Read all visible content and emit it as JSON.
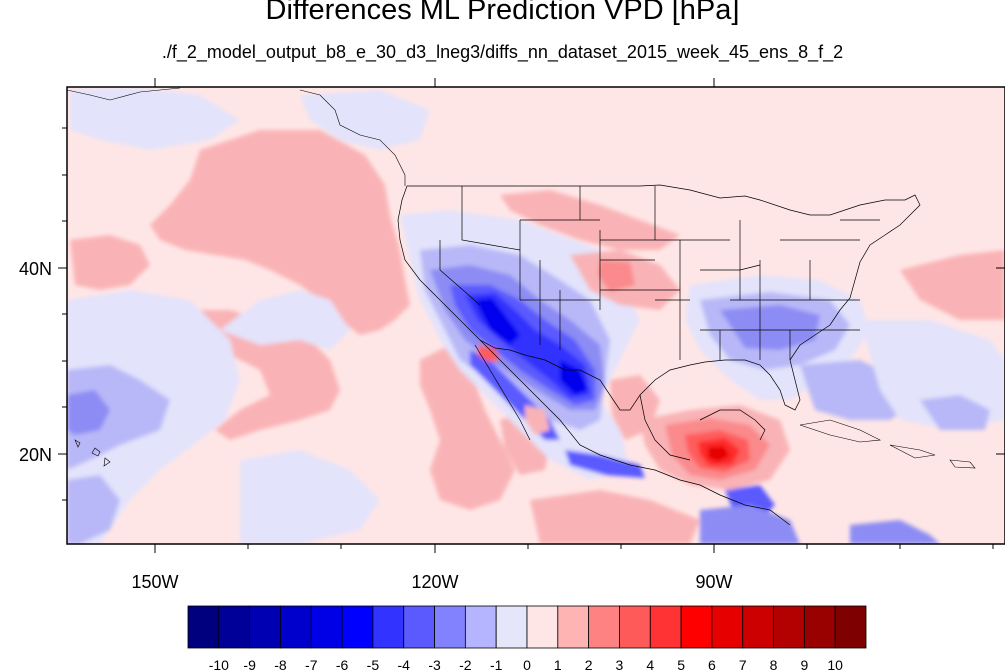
{
  "title": "Differences ML Prediction VPD [hPa]",
  "subtitle": "./f_2_model_output_b8_e_30_d3_lneg3/diffs_nn_dataset_2015_week_45_ens_8_f_2",
  "map": {
    "projection": "cylindrical equidistant",
    "lon_range": [
      -159.3,
      -59.0
    ],
    "lat_range": [
      10.0,
      58.5
    ],
    "lon_tick_labels": [
      "150W",
      "120W",
      "90W"
    ],
    "lat_tick_labels": [
      "40N",
      "20N"
    ],
    "background_level": "0 to 1 (pale pink) over most of domain",
    "notable_features": [
      "strong negative (-5 to -7) over southwestern US / Baja California / northwestern Mexico",
      "positive maximum (6 to 7) over Gulf of Mexico / Bay of Campeche",
      "negative (-1 to -3) over southeastern US",
      "positive (1 to 3) band over eastern Pacific"
    ]
  },
  "colorbar": {
    "labels": [
      "-10",
      "-9",
      "-8",
      "-7",
      "-6",
      "-5",
      "-4",
      "-3",
      "-2",
      "-1",
      "0",
      "1",
      "2",
      "3",
      "4",
      "5",
      "6",
      "7",
      "8",
      "9",
      "10"
    ],
    "colors": [
      "#00007f",
      "#000099",
      "#0000b3",
      "#0000cc",
      "#0000e6",
      "#0000ff",
      "#3333ff",
      "#5a5aff",
      "#8282ff",
      "#b4b4ff",
      "#e6e6fa",
      "#ffe6e6",
      "#ffb4b4",
      "#ff8282",
      "#ff5a5a",
      "#ff3333",
      "#ff0000",
      "#e60000",
      "#cc0000",
      "#b30000",
      "#990000",
      "#7f0000"
    ]
  }
}
